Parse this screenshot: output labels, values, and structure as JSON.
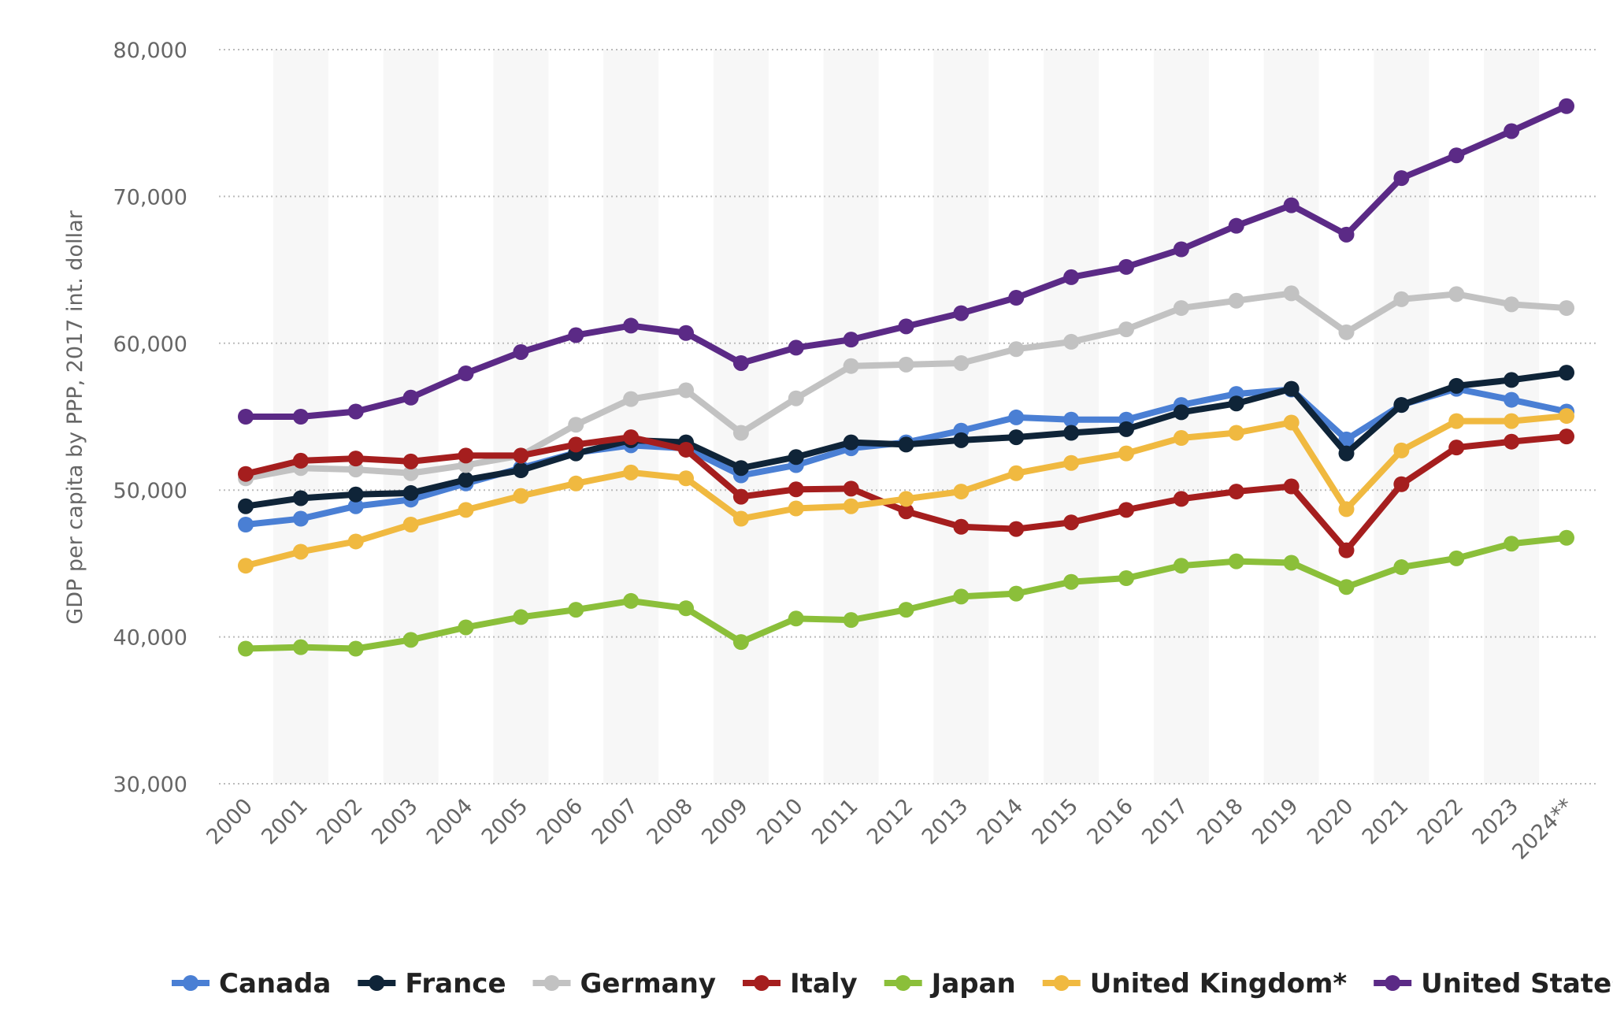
{
  "chart_data": {
    "type": "line",
    "y_axis_label": "GDP per capita by PPP, 2017 int. dollar",
    "categories": [
      "2000",
      "2001",
      "2002",
      "2003",
      "2004",
      "2005",
      "2006",
      "2007",
      "2008",
      "2009",
      "2010",
      "2011",
      "2012",
      "2013",
      "2014",
      "2015",
      "2016",
      "2017",
      "2018",
      "2019",
      "2020",
      "2021",
      "2022",
      "2023",
      "2024**"
    ],
    "ylim": [
      30000,
      80000
    ],
    "yticks": [
      {
        "value": 30000,
        "label": "30,000"
      },
      {
        "value": 40000,
        "label": "40,000"
      },
      {
        "value": 50000,
        "label": "50,000"
      },
      {
        "value": 60000,
        "label": "60,000"
      },
      {
        "value": 70000,
        "label": "70,000"
      },
      {
        "value": 80000,
        "label": "80,000"
      }
    ],
    "grid": true,
    "legend": "bottom",
    "series": [
      {
        "name": "Canada",
        "color": "#4a7fd4",
        "values": [
          47650,
          48050,
          48900,
          49350,
          50450,
          51500,
          52550,
          53050,
          52850,
          51000,
          51700,
          52850,
          53250,
          54050,
          54950,
          54800,
          54800,
          55800,
          56550,
          56850,
          53450,
          55800,
          56900,
          56150,
          55350
        ]
      },
      {
        "name": "France",
        "color": "#0f2438",
        "values": [
          48900,
          49450,
          49700,
          49800,
          50700,
          51350,
          52500,
          53400,
          53250,
          51500,
          52250,
          53250,
          53100,
          53400,
          53600,
          53900,
          54150,
          55300,
          55900,
          56900,
          52500,
          55800,
          57100,
          57500,
          58000
        ]
      },
      {
        "name": "Germany",
        "color": "#c2c2c2",
        "values": [
          50800,
          51500,
          51400,
          51150,
          51700,
          52350,
          54450,
          56200,
          56800,
          53900,
          56250,
          58450,
          58550,
          58650,
          59600,
          60100,
          60950,
          62400,
          62900,
          63400,
          60750,
          63000,
          63350,
          62650,
          62400
        ]
      },
      {
        "name": "Italy",
        "color": "#a51e1e",
        "values": [
          51100,
          52000,
          52150,
          51950,
          52350,
          52350,
          53100,
          53600,
          52750,
          49550,
          50050,
          50100,
          48550,
          47500,
          47350,
          47800,
          48650,
          49400,
          49900,
          50250,
          45900,
          50400,
          52900,
          53300,
          53650
        ]
      },
      {
        "name": "Japan",
        "color": "#8bbf3a",
        "values": [
          39200,
          39300,
          39200,
          39800,
          40650,
          41350,
          41850,
          42450,
          41950,
          39650,
          41250,
          41150,
          41850,
          42750,
          42950,
          43750,
          44000,
          44850,
          45150,
          45050,
          43400,
          44750,
          45350,
          46350,
          46750
        ]
      },
      {
        "name": "United Kingdom*",
        "color": "#f0b940",
        "values": [
          44850,
          45800,
          46500,
          47650,
          48650,
          49600,
          50450,
          51200,
          50800,
          48050,
          48750,
          48900,
          49400,
          49900,
          51150,
          51850,
          52500,
          53550,
          53900,
          54600,
          48700,
          52700,
          54700,
          54700,
          55050
        ]
      },
      {
        "name": "United States",
        "color": "#5b2a86",
        "values": [
          55000,
          55000,
          55350,
          56300,
          57950,
          59400,
          60550,
          61200,
          60700,
          58650,
          59700,
          60250,
          61150,
          62050,
          63100,
          64500,
          65200,
          66400,
          68000,
          69400,
          67400,
          71250,
          72800,
          74450,
          76150
        ]
      }
    ]
  }
}
